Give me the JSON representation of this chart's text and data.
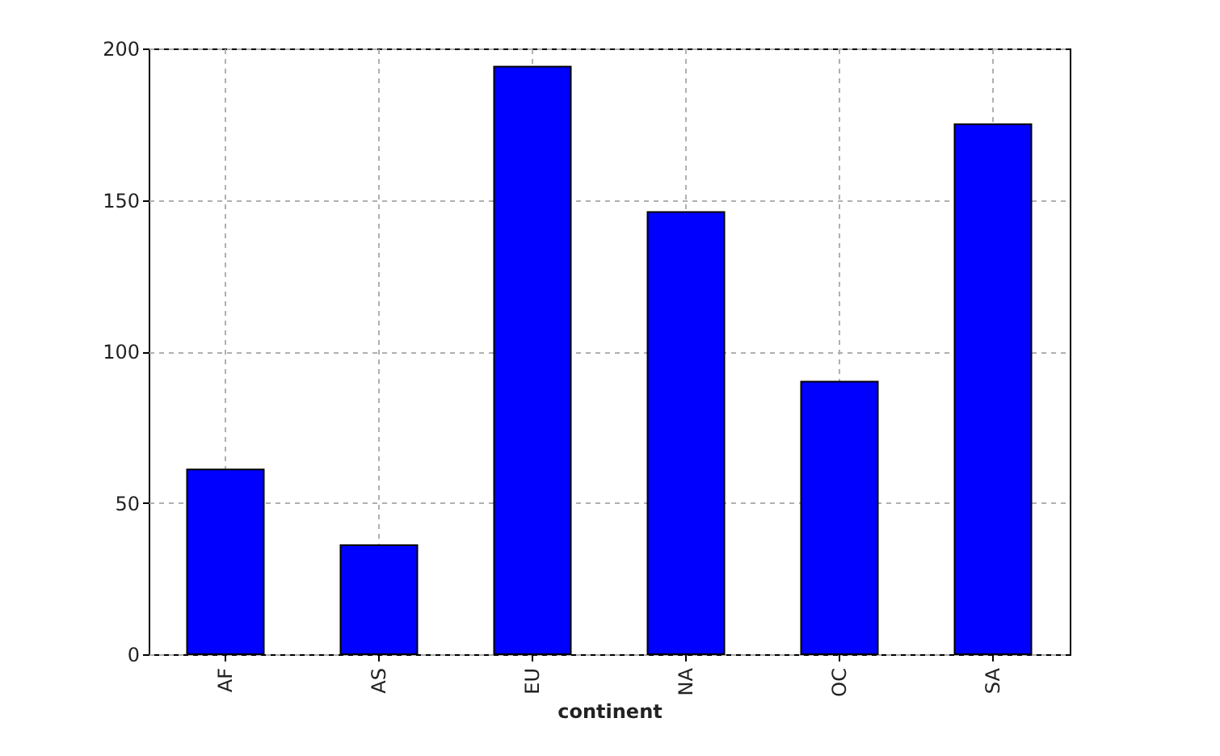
{
  "chart_data": {
    "type": "bar",
    "xlabel": "continent",
    "categories": [
      "AF",
      "AS",
      "EU",
      "NA",
      "OC",
      "SA"
    ],
    "values": [
      61,
      36,
      194,
      146,
      90,
      175
    ],
    "color": "#0000ff",
    "ylim": [
      0,
      200
    ],
    "yticks": [
      0,
      50,
      100,
      150,
      200
    ],
    "grid": true
  }
}
